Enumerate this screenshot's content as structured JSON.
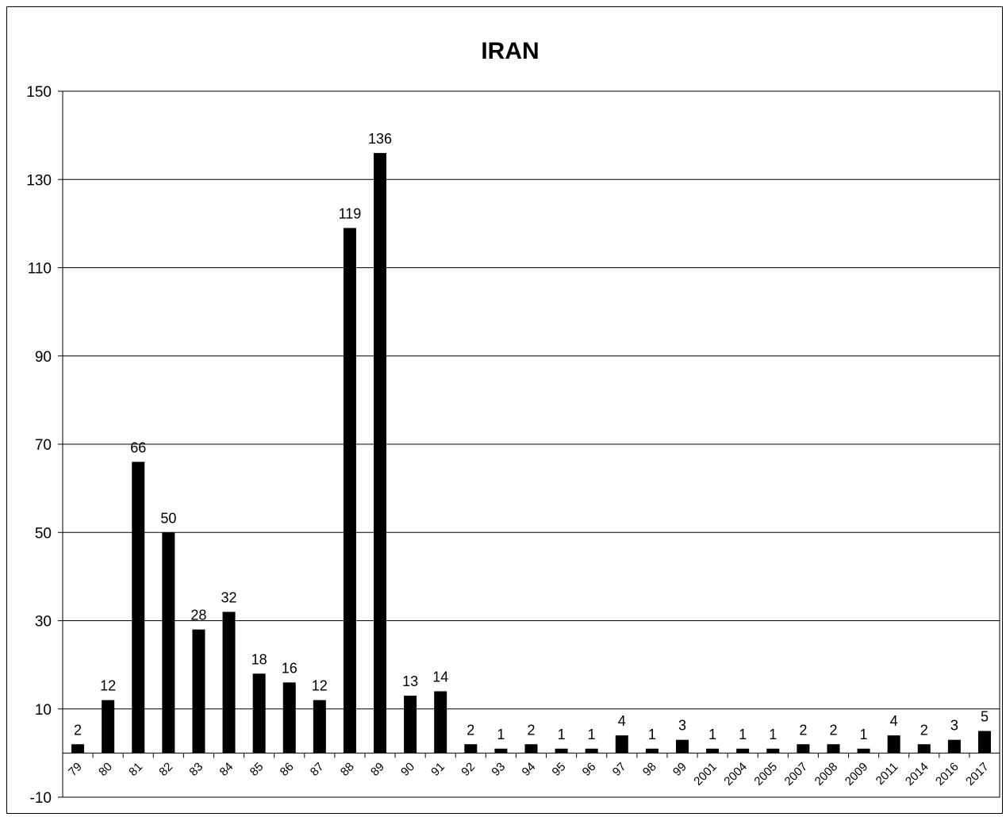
{
  "chart_data": {
    "type": "bar",
    "title": "IRAN",
    "xlabel": "",
    "ylabel": "",
    "ylim": [
      -10,
      150
    ],
    "yticks": [
      -10,
      10,
      30,
      50,
      70,
      90,
      110,
      130,
      150
    ],
    "grid": true,
    "legend": "none",
    "bar_color": "#000000",
    "categories": [
      "79",
      "80",
      "81",
      "82",
      "83",
      "84",
      "85",
      "86",
      "87",
      "88",
      "89",
      "90",
      "91",
      "92",
      "93",
      "94",
      "95",
      "96",
      "97",
      "98",
      "99",
      "2001",
      "2004",
      "2005",
      "2007",
      "2008",
      "2009",
      "2011",
      "2014",
      "2016",
      "2017"
    ],
    "values": [
      2,
      12,
      66,
      50,
      28,
      32,
      18,
      16,
      12,
      119,
      136,
      13,
      14,
      2,
      1,
      2,
      1,
      1,
      4,
      1,
      3,
      1,
      1,
      1,
      2,
      2,
      1,
      4,
      2,
      3,
      5
    ]
  }
}
